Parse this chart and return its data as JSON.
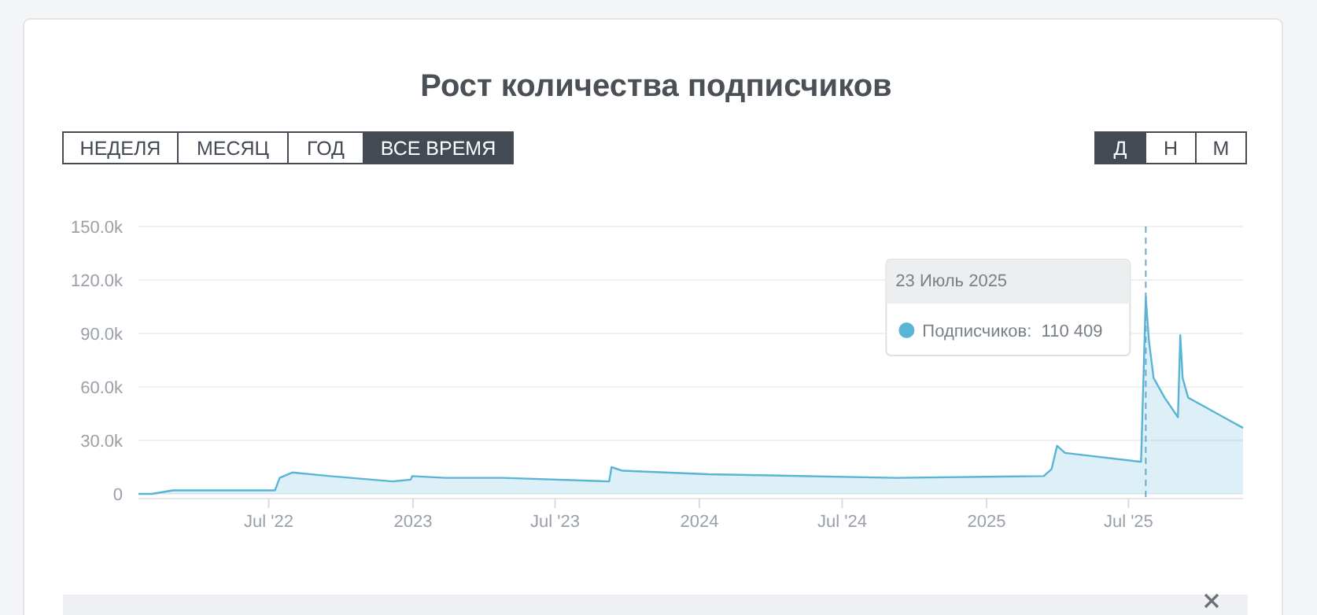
{
  "chart_data": {
    "type": "area",
    "title": "Рост количества подписчиков",
    "x": [
      "2022-01-16",
      "2022-02-02",
      "2022-03-01",
      "2022-07-09",
      "2022-07-15",
      "2022-07-31",
      "2022-09-17",
      "2022-12-06",
      "2022-12-29",
      "2022-12-31",
      "2023-02-11",
      "2023-04-26",
      "2023-09-08",
      "2023-09-11",
      "2023-09-25",
      "2024-01-12",
      "2024-09-07",
      "2025-03-15",
      "2025-03-25",
      "2025-04-01",
      "2025-04-11",
      "2025-07-17",
      "2025-07-23",
      "2025-07-27",
      "2025-08-02",
      "2025-08-16",
      "2025-09-02",
      "2025-09-05",
      "2025-09-08",
      "2025-09-15",
      "2025-10-22",
      "2025-11-24"
    ],
    "series": [
      {
        "color": "#5ab4d6",
        "values": [
          0,
          0,
          2000,
          2000,
          9000,
          12000,
          10000,
          7000,
          8000,
          10000,
          9000,
          9000,
          7000,
          15000,
          13000,
          11000,
          9000,
          10000,
          14000,
          27000,
          23000,
          18000,
          110409,
          86000,
          65000,
          54000,
          43000,
          89000,
          65000,
          54000,
          45000,
          37000
        ]
      }
    ],
    "xlim": [
      "2022-01-16",
      "2025-11-24"
    ],
    "xticks": [
      {
        "value": "2022-07-01",
        "label": "Jul '22"
      },
      {
        "value": "2023-01-01",
        "label": "2023"
      },
      {
        "value": "2023-07-01",
        "label": "Jul '23"
      },
      {
        "value": "2024-01-01",
        "label": "2024"
      },
      {
        "value": "2024-07-01",
        "label": "Jul '24"
      },
      {
        "value": "2025-01-01",
        "label": "2025"
      },
      {
        "value": "2025-07-01",
        "label": "Jul '25"
      }
    ],
    "ylim": [
      0,
      150000
    ],
    "yticks": [
      0,
      {
        "value": 30000,
        "label": "30.0k"
      },
      {
        "value": 60000,
        "label": "60.0k"
      },
      {
        "value": 90000,
        "label": "90.0k"
      },
      {
        "value": 120000,
        "label": "120.0k"
      },
      {
        "value": 150000,
        "label": "150.0k"
      }
    ],
    "grid": "y",
    "marker": "none",
    "ref_lines": [
      {
        "axis": "x",
        "value": "2025-07-23",
        "line_style": "dashed",
        "color": "#6aaccc"
      }
    ],
    "annotations": [
      "23 Июль 2025",
      "Подписчиков:  110 409",
      "НЕДЕЛЯ",
      "МЕСЯЦ",
      "ГОД",
      "ВСЕ ВРЕМЯ",
      "Д",
      "Н",
      "М"
    ]
  }
}
